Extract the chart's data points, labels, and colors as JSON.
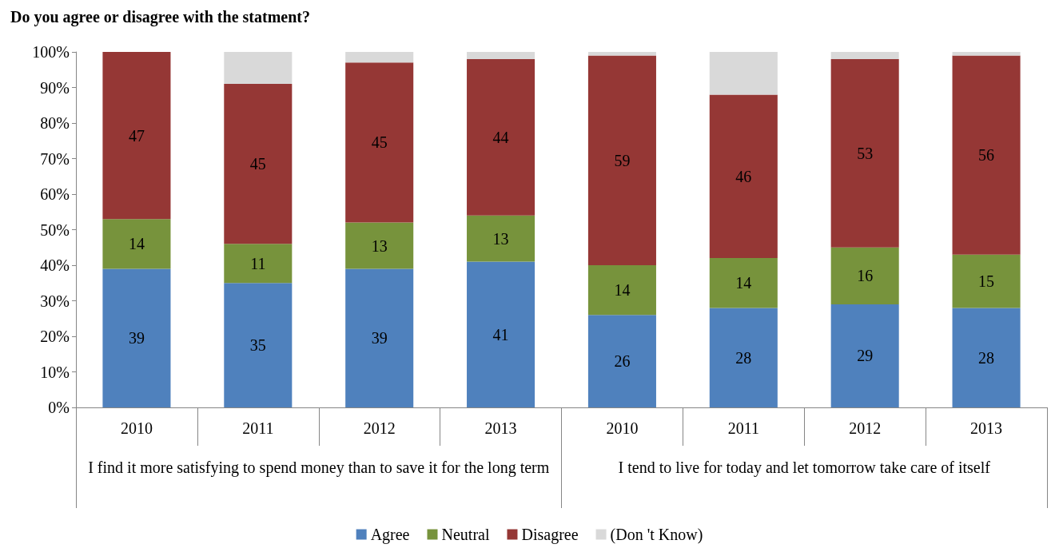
{
  "chart_data": {
    "type": "bar",
    "title": "Do you agree or disagree with the statment?",
    "categories": [
      "2010",
      "2011",
      "2012",
      "2013",
      "2010",
      "2011",
      "2012",
      "2013"
    ],
    "annotations": [
      "I find it more satisfying to spend money than to save it for the long term",
      "I tend to live for today and let tomorrow take care of itself"
    ],
    "series": [
      {
        "name": "Agree",
        "color": "#4f81bd",
        "values": [
          39,
          35,
          39,
          41,
          26,
          28,
          29,
          28
        ],
        "value_labels": [
          "39",
          "35",
          "39",
          "41",
          "26",
          "28",
          "29",
          "28"
        ]
      },
      {
        "name": "Neutral",
        "color": "#77933c",
        "values": [
          14,
          11,
          13,
          13,
          14,
          14,
          16,
          15
        ],
        "value_labels": [
          "14",
          "11",
          "13",
          "13",
          "14",
          "14",
          "16",
          "15"
        ]
      },
      {
        "name": "Disagree",
        "color": "#953735",
        "values": [
          47,
          45,
          45,
          44,
          59,
          46,
          53,
          56
        ],
        "value_labels": [
          "47",
          "45",
          "45",
          "44",
          "59",
          "46",
          "53",
          "56"
        ]
      },
      {
        "name": "(Don 't Know)",
        "color": "#d9d9d9",
        "values": [
          0,
          9,
          3,
          2,
          1,
          12,
          2,
          1
        ]
      }
    ],
    "stacked": true,
    "ylim": [
      0,
      100
    ],
    "yticks": [
      {
        "value": 0,
        "label": "0%"
      },
      {
        "value": 10,
        "label": "10%"
      },
      {
        "value": 20,
        "label": "20%"
      },
      {
        "value": 30,
        "label": "30%"
      },
      {
        "value": 40,
        "label": "40%"
      },
      {
        "value": 50,
        "label": "50%"
      },
      {
        "value": 60,
        "label": "60%"
      },
      {
        "value": 70,
        "label": "70%"
      },
      {
        "value": 80,
        "label": "80%"
      },
      {
        "value": 90,
        "label": "90%"
      },
      {
        "value": 100,
        "label": "100%"
      }
    ],
    "grid": false,
    "legend": "bottom"
  }
}
